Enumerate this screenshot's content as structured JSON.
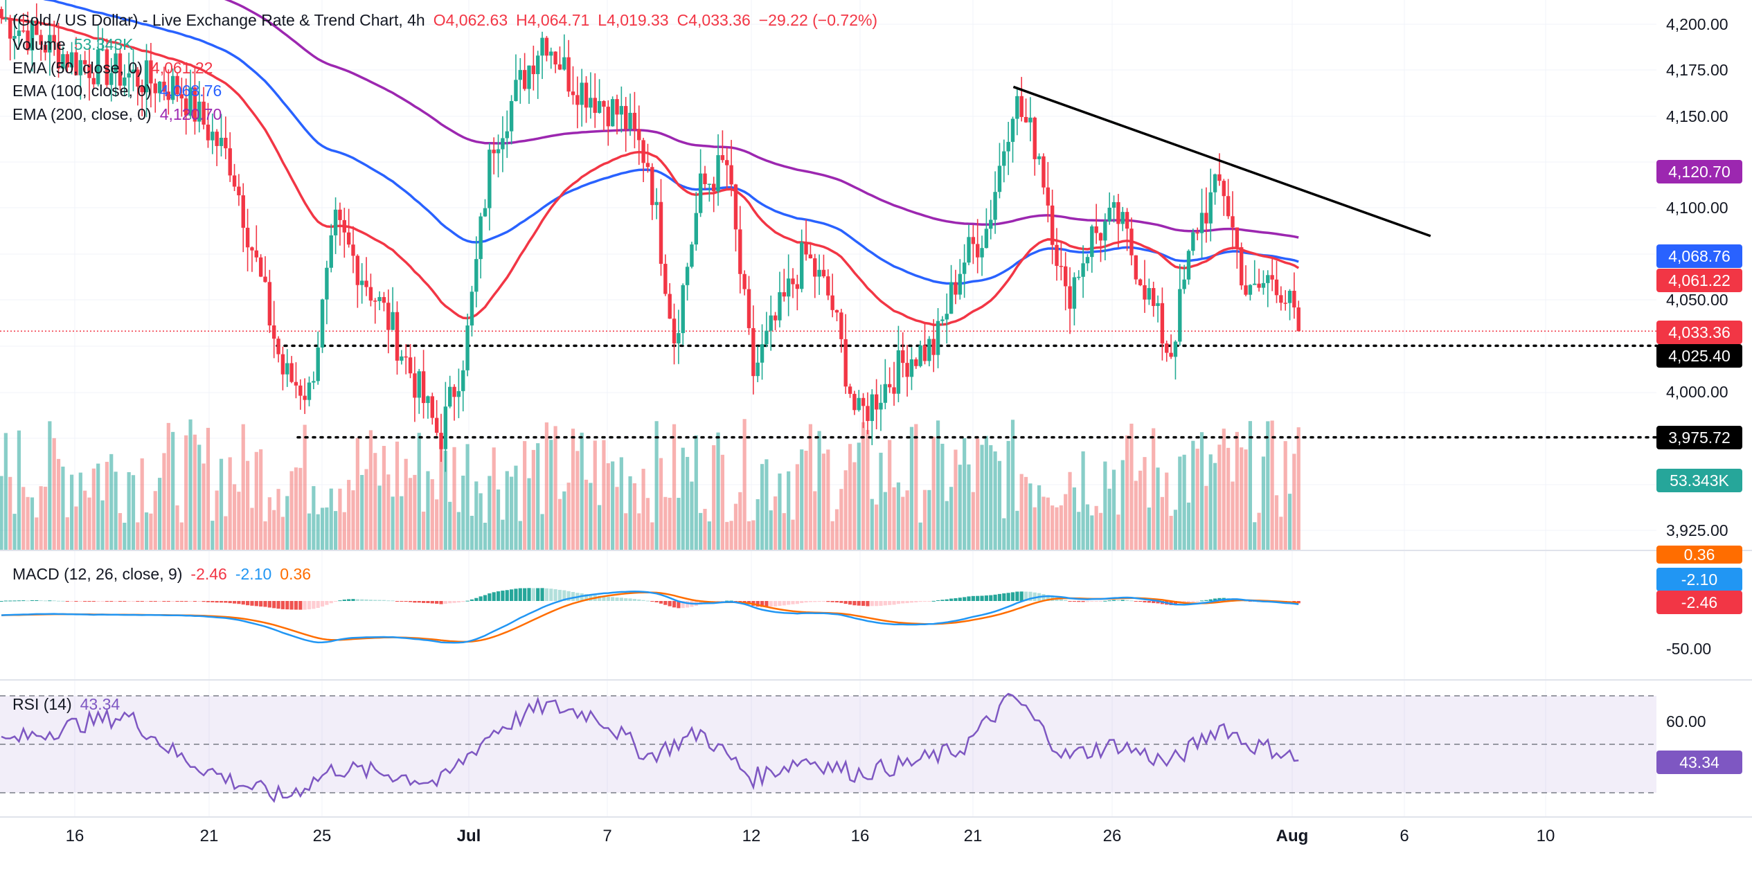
{
  "header": {
    "symbol": "(Gold / US Dollar) - Live Exchange Rate & Trend Chart, 4h",
    "open": "O4,062.63",
    "high": "H4,064.71",
    "low": "L4,019.33",
    "close": "C4,033.36",
    "change": "−29.22 (−0.72%)"
  },
  "legend": {
    "volume_label": "Volume",
    "volume_value": "53.343K",
    "ema50_label": "EMA (50, close, 0)",
    "ema50_value": "4,061.22",
    "ema100_label": "EMA (100, close, 0)",
    "ema100_value": "4,068.76",
    "ema200_label": "EMA (200, close, 0)",
    "ema200_value": "4,120.70",
    "macd_label": "MACD (12, 26, close, 9)",
    "macd_hist": "-2.46",
    "macd_line": "-2.10",
    "macd_signal": "0.36",
    "rsi_label": "RSI (14)",
    "rsi_value": "43.34"
  },
  "price_axis": [
    "4,200.00",
    "4,175.00",
    "4,150.00",
    "4,100.00",
    "4,050.00",
    "4,000.00",
    "3,925.00"
  ],
  "price_badges": {
    "ema200": "4,120.70",
    "ema100": "4,068.76",
    "ema50": "4,061.22",
    "last": "4,033.36",
    "support1": "4,025.40",
    "support2": "3,975.72",
    "volume": "53.343K"
  },
  "macd_axis": [
    "0.36",
    "-2.10",
    "-2.46",
    "-50.00"
  ],
  "rsi_axis": [
    "60.00",
    "43.34"
  ],
  "time_axis": [
    "16",
    "21",
    "25",
    "Jul",
    "7",
    "12",
    "16",
    "21",
    "26",
    "Aug",
    "6",
    "10"
  ],
  "colors": {
    "up": "#26a69a",
    "down": "#ef5350",
    "up_candle": "#22ab94",
    "down_candle": "#f23645",
    "ema50": "#f23645",
    "ema100": "#2962ff",
    "ema200": "#9c27b0",
    "trendline": "#000000",
    "macd": "#2196f3",
    "signal": "#ff6d00",
    "rsi": "#7e57c2"
  },
  "chart_data": [
    {
      "type": "candlestick",
      "title": "(Gold / US Dollar) - Live Exchange Rate & Trend Chart, 4h",
      "timeframe": "4h",
      "last_bar": {
        "open": 4062.63,
        "high": 4064.71,
        "low": 4019.33,
        "close": 4033.36,
        "change": -29.22,
        "change_pct": -0.72
      },
      "ylim": [
        3925,
        4215
      ],
      "series": [
        {
          "name": "EMA (50, close, 0)",
          "last": 4061.22
        },
        {
          "name": "EMA (100, close, 0)",
          "last": 4068.76
        },
        {
          "name": "EMA (200, close, 0)",
          "last": 4120.7
        }
      ],
      "horizontal_levels": [
        4025.4,
        3975.72
      ],
      "descending_trendline": {
        "from": {
          "x": "Jul 22",
          "price": 4166
        },
        "to": {
          "x": "Aug 7",
          "price": 4085
        }
      },
      "close_path": [
        {
          "x": "Jun 13",
          "close": 4205
        },
        {
          "x": "Jun 16",
          "close": 4180
        },
        {
          "x": "Jun 20",
          "close": 4165
        },
        {
          "x": "Jun 22",
          "close": 4125
        },
        {
          "x": "Jun 24",
          "close": 4010
        },
        {
          "x": "Jun 25",
          "close": 4000
        },
        {
          "x": "Jun 26",
          "close": 4090
        },
        {
          "x": "Jun 28",
          "close": 4040
        },
        {
          "x": "Jun 30",
          "close": 3975
        },
        {
          "x": "Jul 1",
          "close": 4025
        },
        {
          "x": "Jul 2",
          "close": 4135
        },
        {
          "x": "Jul 4",
          "close": 4195
        },
        {
          "x": "Jul 5",
          "close": 4170
        },
        {
          "x": "Jul 7",
          "close": 4150
        },
        {
          "x": "Jul 8",
          "close": 4125
        },
        {
          "x": "Jul 9",
          "close": 4030
        },
        {
          "x": "Jul 10",
          "close": 4110
        },
        {
          "x": "Jul 11",
          "close": 4125
        },
        {
          "x": "Jul 12",
          "close": 4010
        },
        {
          "x": "Jul 14",
          "close": 4075
        },
        {
          "x": "Jul 15",
          "close": 4050
        },
        {
          "x": "Jul 16",
          "close": 3985
        },
        {
          "x": "Jul 18",
          "close": 4020
        },
        {
          "x": "Jul 19",
          "close": 4025
        },
        {
          "x": "Jul 20",
          "close": 4070
        },
        {
          "x": "Jul 21",
          "close": 4090
        },
        {
          "x": "Jul 22",
          "close": 4160
        },
        {
          "x": "Jul 23",
          "close": 4130
        },
        {
          "x": "Jul 24",
          "close": 4050
        },
        {
          "x": "Jul 25",
          "close": 4085
        },
        {
          "x": "Jul 26",
          "close": 4095
        },
        {
          "x": "Jul 27",
          "close": 4060
        },
        {
          "x": "Jul 28",
          "close": 4020
        },
        {
          "x": "Jul 29",
          "close": 4090
        },
        {
          "x": "Jul 30",
          "close": 4115
        },
        {
          "x": "Jul 31",
          "close": 4050
        },
        {
          "x": "Aug 1",
          "close": 4065
        },
        {
          "x": "Aug 2",
          "close": 4033.36
        }
      ]
    },
    {
      "type": "bar",
      "title": "Volume",
      "last": "53.343K"
    },
    {
      "type": "line",
      "title": "MACD (12, 26, close, 9)",
      "series": [
        {
          "name": "Histogram",
          "last": -2.46
        },
        {
          "name": "MACD",
          "last": -2.1
        },
        {
          "name": "Signal",
          "last": 0.36
        }
      ]
    },
    {
      "type": "line",
      "title": "RSI (14)",
      "series": [
        {
          "name": "RSI (14)",
          "last": 43.34
        }
      ],
      "path": [
        {
          "x": "Jun 13",
          "value": 50
        },
        {
          "x": "Jun 16",
          "value": 58
        },
        {
          "x": "Jun 18",
          "value": 62
        },
        {
          "x": "Jun 20",
          "value": 45
        },
        {
          "x": "Jun 22",
          "value": 35
        },
        {
          "x": "Jun 24",
          "value": 28
        },
        {
          "x": "Jun 26",
          "value": 40
        },
        {
          "x": "Jun 28",
          "value": 38
        },
        {
          "x": "Jun 30",
          "value": 34
        },
        {
          "x": "Jul 2",
          "value": 55
        },
        {
          "x": "Jul 4",
          "value": 66
        },
        {
          "x": "Jul 6",
          "value": 62
        },
        {
          "x": "Jul 8",
          "value": 45
        },
        {
          "x": "Jul 10",
          "value": 55
        },
        {
          "x": "Jul 12",
          "value": 36
        },
        {
          "x": "Jul 14",
          "value": 44
        },
        {
          "x": "Jul 16",
          "value": 38
        },
        {
          "x": "Jul 18",
          "value": 42
        },
        {
          "x": "Jul 20",
          "value": 48
        },
        {
          "x": "Jul 22",
          "value": 70
        },
        {
          "x": "Jul 24",
          "value": 45
        },
        {
          "x": "Jul 26",
          "value": 50
        },
        {
          "x": "Jul 28",
          "value": 42
        },
        {
          "x": "Jul 30",
          "value": 58
        },
        {
          "x": "Jul 31",
          "value": 50
        },
        {
          "x": "Aug 1",
          "value": 48
        },
        {
          "x": "Aug 2",
          "value": 43.34
        }
      ]
    }
  ]
}
